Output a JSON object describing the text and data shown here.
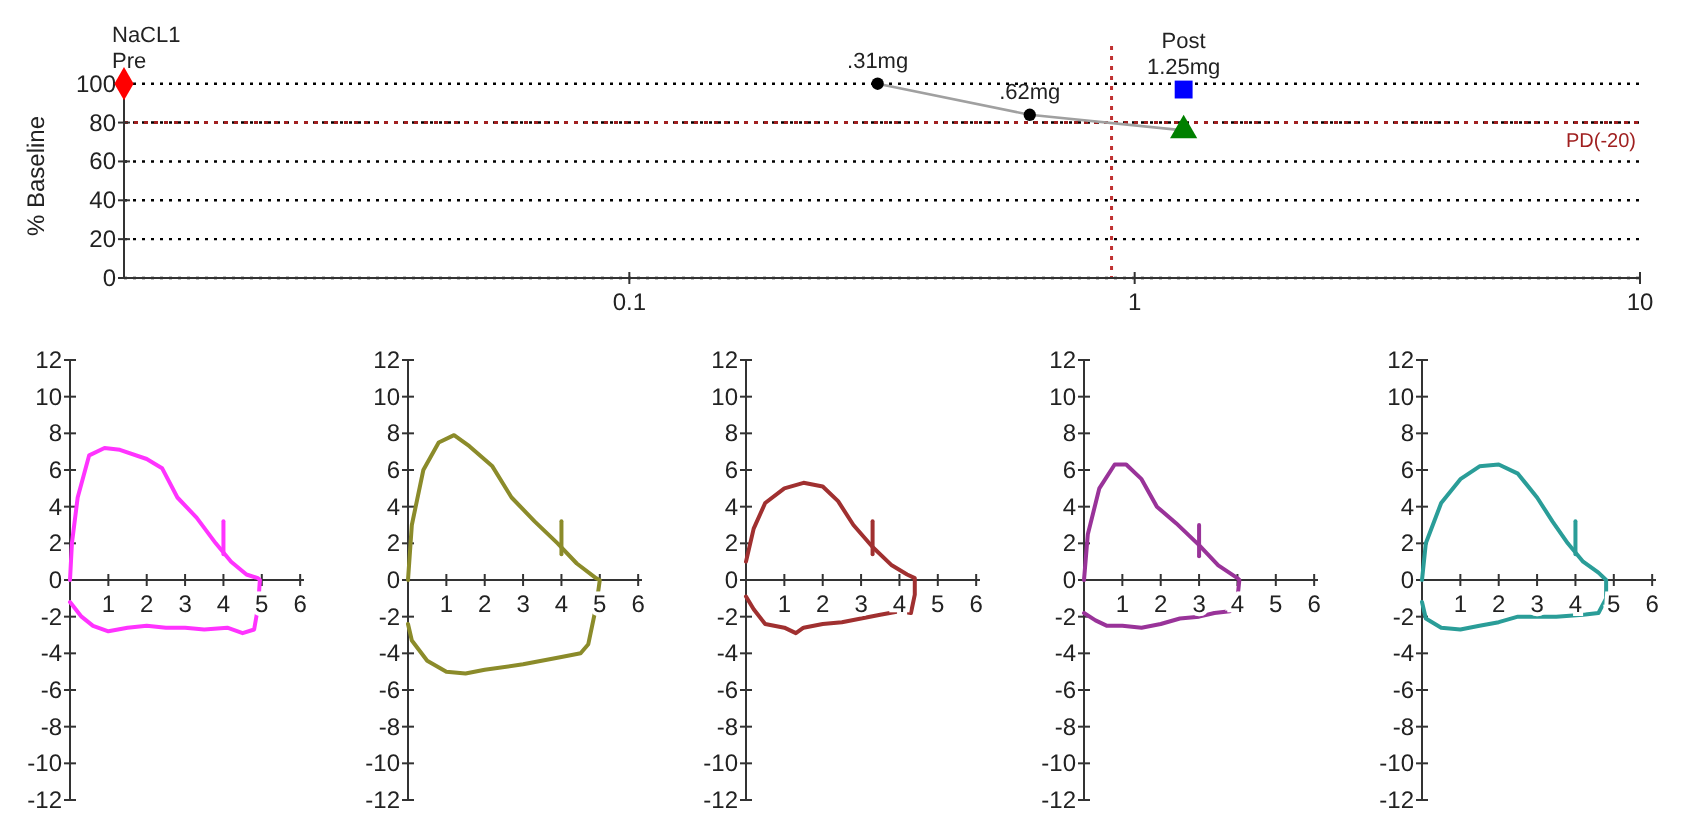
{
  "chart_data": [
    {
      "type": "scatter",
      "ylabel": "% Baseline",
      "log": "x",
      "xlim": [
        0.01,
        10
      ],
      "xticks": [
        0.1,
        1,
        10
      ],
      "ylim": [
        0,
        105
      ],
      "yticks": [
        0,
        20,
        40,
        60,
        80,
        100
      ],
      "grid": "y",
      "series": [
        {
          "type": "line",
          "color": "#a0a0a0",
          "x": [
            0.31,
            0.62,
            1.25
          ],
          "values": [
            100,
            84,
            76
          ],
          "marker": "none"
        },
        {
          "color": "#000000",
          "x": [
            0.31,
            0.62
          ],
          "values": [
            100,
            84
          ],
          "marker": "circle"
        },
        {
          "color": "#ff0000",
          "x": [
            0.01
          ],
          "values": [
            100
          ],
          "marker": "diamond"
        },
        {
          "color": "#008000",
          "x": [
            1.25
          ],
          "values": [
            76
          ],
          "marker": "triangle"
        },
        {
          "color": "#0000ff",
          "x": [
            1.25
          ],
          "values": [
            97
          ],
          "marker": "square"
        }
      ],
      "ref_lines": [
        {
          "axis": "y",
          "value": 80,
          "label": "PD(-20)",
          "color": "#a02020",
          "line_style": "dotted"
        },
        {
          "axis": "x",
          "value": 0.9,
          "color": "#c03030",
          "line_style": "dotted"
        }
      ],
      "annotations": [
        {
          "text": "Pre",
          "x": 0.01,
          "y": 100
        },
        {
          "text": "NaCL1",
          "x": 0.01,
          "y": 100
        },
        {
          "text": ".31mg",
          "x": 0.31,
          "y": 100
        },
        {
          "text": ".62mg",
          "x": 0.62,
          "y": 84
        },
        {
          "text": "1.25mg",
          "x": 1.25,
          "y": 97
        },
        {
          "text": "Post",
          "x": 1.25,
          "y": 97
        }
      ]
    },
    {
      "type": "line",
      "xlim": [
        0,
        6.1
      ],
      "xticks": [
        1,
        2,
        3,
        4,
        5,
        6
      ],
      "ylim": [
        -12,
        12
      ],
      "yticks": [
        -12,
        -10,
        -8,
        -6,
        -4,
        -2,
        0,
        2,
        4,
        6,
        8,
        10,
        12
      ],
      "series": [
        {
          "color": "#ff33ff",
          "x": [
            0,
            0.05,
            0.2,
            0.5,
            0.9,
            1.3,
            2,
            2.4,
            2.8,
            3.3,
            3.8,
            4.2,
            4.6,
            4.9,
            4.95,
            4.9,
            4.8,
            4.5,
            4.1,
            3.5,
            3,
            2.5,
            2,
            1.5,
            1,
            0.6,
            0.3,
            0
          ],
          "values": [
            0,
            2,
            4.5,
            6.8,
            7.2,
            7.1,
            6.6,
            6.1,
            4.5,
            3.4,
            2,
            1,
            0.3,
            0.1,
            0,
            -1.5,
            -2.7,
            -2.9,
            -2.6,
            -2.7,
            -2.6,
            -2.6,
            -2.5,
            -2.6,
            -2.8,
            -2.5,
            -2,
            -1.2
          ]
        },
        {
          "color": "#ff33ff",
          "x": [
            4,
            4
          ],
          "values": [
            1.4,
            3.2
          ]
        }
      ]
    },
    {
      "type": "line",
      "xlim": [
        0,
        6.1
      ],
      "xticks": [
        1,
        2,
        3,
        4,
        5,
        6
      ],
      "ylim": [
        -12,
        12
      ],
      "yticks": [
        -12,
        -10,
        -8,
        -6,
        -4,
        -2,
        0,
        2,
        4,
        6,
        8,
        10,
        12
      ],
      "series": [
        {
          "color": "#8b8b2a",
          "x": [
            0,
            0.1,
            0.4,
            0.8,
            1.2,
            1.6,
            2.2,
            2.7,
            3.3,
            3.9,
            4.4,
            4.9,
            5,
            4.9,
            4.7,
            4.5,
            4,
            3,
            2,
            1.5,
            1,
            0.5,
            0.1,
            0
          ],
          "values": [
            0,
            3,
            6,
            7.5,
            7.9,
            7.3,
            6.2,
            4.5,
            3.2,
            2,
            0.9,
            0.1,
            0,
            -1.5,
            -3.5,
            -4,
            -4.2,
            -4.6,
            -4.9,
            -5.1,
            -5,
            -4.4,
            -3.3,
            -2.4
          ]
        },
        {
          "color": "#8b8b2a",
          "x": [
            4,
            4
          ],
          "values": [
            1.4,
            3.2
          ]
        }
      ]
    },
    {
      "type": "line",
      "xlim": [
        0,
        6.1
      ],
      "xticks": [
        1,
        2,
        3,
        4,
        5,
        6
      ],
      "ylim": [
        -12,
        12
      ],
      "yticks": [
        -12,
        -10,
        -8,
        -6,
        -4,
        -2,
        0,
        2,
        4,
        6,
        8,
        10,
        12
      ],
      "series": [
        {
          "color": "#a03030",
          "x": [
            0,
            0.2,
            0.5,
            1,
            1.5,
            2,
            2.4,
            2.8,
            3.3,
            3.8,
            4.2,
            4.4,
            4.4,
            4.3,
            4,
            3.5,
            3,
            2.5,
            2,
            1.5,
            1.3,
            1,
            0.5,
            0.2,
            0
          ],
          "values": [
            1,
            2.8,
            4.2,
            5,
            5.3,
            5.1,
            4.3,
            3,
            1.8,
            0.8,
            0.3,
            0.1,
            -0.8,
            -1.8,
            -1.7,
            -1.9,
            -2.1,
            -2.3,
            -2.4,
            -2.6,
            -2.9,
            -2.6,
            -2.4,
            -1.6,
            -0.9
          ]
        },
        {
          "color": "#a03030",
          "x": [
            3.3,
            3.3
          ],
          "values": [
            1.4,
            3.2
          ]
        }
      ]
    },
    {
      "type": "line",
      "xlim": [
        0,
        6.1
      ],
      "xticks": [
        1,
        2,
        3,
        4,
        5,
        6
      ],
      "ylim": [
        -12,
        12
      ],
      "yticks": [
        -12,
        -10,
        -8,
        -6,
        -4,
        -2,
        0,
        2,
        4,
        6,
        8,
        10,
        12
      ],
      "series": [
        {
          "color": "#993399",
          "x": [
            0,
            0.1,
            0.4,
            0.8,
            1.1,
            1.5,
            1.9,
            2.4,
            3,
            3.5,
            4,
            4.05,
            4,
            3.8,
            3.4,
            3,
            2.5,
            2,
            1.5,
            1,
            0.6,
            0.3,
            0
          ],
          "values": [
            0,
            2.5,
            5,
            6.3,
            6.3,
            5.5,
            4,
            3.1,
            1.9,
            0.8,
            0.1,
            0,
            -1,
            -1.7,
            -1.8,
            -2,
            -2.1,
            -2.4,
            -2.6,
            -2.5,
            -2.5,
            -2.2,
            -1.8
          ]
        },
        {
          "color": "#993399",
          "x": [
            3,
            3
          ],
          "values": [
            1.3,
            3
          ]
        }
      ]
    },
    {
      "type": "line",
      "xlim": [
        0,
        6.1
      ],
      "xticks": [
        1,
        2,
        3,
        4,
        5,
        6
      ],
      "ylim": [
        -12,
        12
      ],
      "yticks": [
        -12,
        -10,
        -8,
        -6,
        -4,
        -2,
        0,
        2,
        4,
        6,
        8,
        10,
        12
      ],
      "series": [
        {
          "color": "#2a9d98",
          "x": [
            0,
            0.1,
            0.5,
            1,
            1.5,
            2,
            2.5,
            3,
            3.4,
            3.8,
            4.2,
            4.6,
            4.8,
            4.8,
            4.6,
            4.2,
            3.5,
            3,
            2.5,
            2,
            1.5,
            1,
            0.5,
            0.1,
            0
          ],
          "values": [
            0,
            2,
            4.2,
            5.5,
            6.2,
            6.3,
            5.8,
            4.5,
            3.2,
            2,
            1,
            0.4,
            0,
            -1,
            -1.8,
            -1.9,
            -2,
            -2,
            -2,
            -2.3,
            -2.5,
            -2.7,
            -2.6,
            -2.1,
            -1.2
          ]
        },
        {
          "color": "#2a9d98",
          "x": [
            4,
            4
          ],
          "values": [
            1.4,
            3.2
          ]
        }
      ]
    }
  ]
}
